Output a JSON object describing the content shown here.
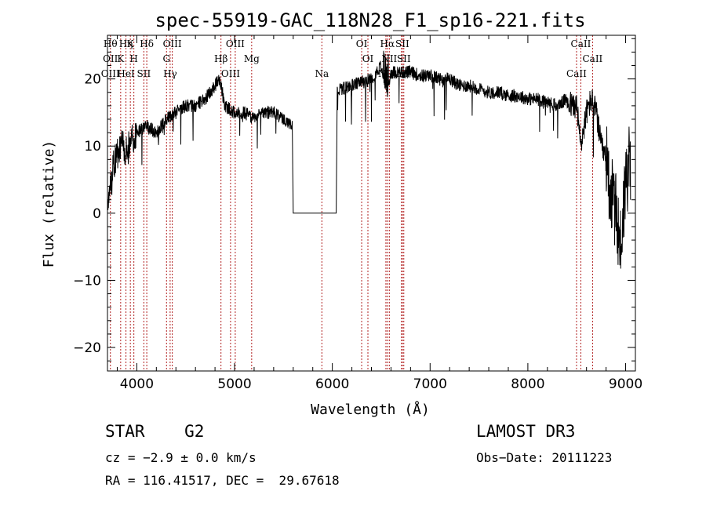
{
  "chart_data": {
    "type": "line",
    "title": "spec-55919-GAC_118N28_F1_sp16-221.fits",
    "xlabel": "Wavelength (Å)",
    "ylabel": "Flux (relative)",
    "xlim": [
      3700,
      9100
    ],
    "ylim": [
      -23.5,
      26.5
    ],
    "xticks": [
      4000,
      5000,
      6000,
      7000,
      8000,
      9000
    ],
    "xtick_labels": [
      "4000",
      "5000",
      "6000",
      "7000",
      "8000",
      "9000"
    ],
    "yticks": [
      -20,
      -10,
      0,
      10,
      20
    ],
    "ytick_labels": [
      "−20",
      "−10",
      "0",
      "10",
      "20"
    ],
    "grid": false,
    "legend": "none",
    "line_color": "#000000",
    "marker_color": "#b22222",
    "spectrum_anchors": {
      "x": [
        3700,
        3740,
        3760,
        3800,
        3850,
        3900,
        3950,
        4000,
        4100,
        4200,
        4300,
        4400,
        4500,
        4600,
        4700,
        4800,
        4850,
        4900,
        5000,
        5100,
        5200,
        5300,
        5400,
        5500,
        5560,
        5590,
        5600,
        6040,
        6050,
        6060,
        6100,
        6200,
        6300,
        6400,
        6450,
        6500,
        6560,
        6600,
        6700,
        6800,
        6900,
        7000,
        7100,
        7200,
        7300,
        7400,
        7500,
        7600,
        7700,
        7800,
        7900,
        8000,
        8100,
        8200,
        8300,
        8400,
        8450,
        8500,
        8540,
        8600,
        8650,
        8700,
        8750,
        8800,
        8850,
        8900,
        8950,
        9000,
        9050
      ],
      "y": [
        2,
        4,
        7,
        9,
        10,
        9,
        11,
        12,
        13,
        12,
        14,
        15,
        16,
        16,
        17,
        19,
        20,
        16,
        15,
        15,
        14,
        15,
        15,
        14,
        13.5,
        13,
        0,
        0,
        18,
        18.5,
        18.5,
        19,
        19.5,
        20,
        21,
        22,
        18,
        21,
        21,
        21,
        20.5,
        20.5,
        20,
        20,
        19,
        19,
        18.5,
        18,
        18,
        17.5,
        17.5,
        17,
        17,
        16.5,
        16,
        17,
        16,
        16,
        10,
        15,
        17,
        15,
        10,
        8,
        3,
        0,
        -5,
        5,
        8
      ]
    },
    "spectrum_noise_seed": 55919,
    "lines": [
      {
        "x": 3730,
        "labels": [
          "Hθ",
          "OII",
          "OIII"
        ]
      },
      {
        "x": 3835,
        "labels": [
          "K"
        ]
      },
      {
        "x": 3889,
        "labels": [
          "HeI",
          "Hη"
        ]
      },
      {
        "x": 3934,
        "labels": [
          "K"
        ]
      },
      {
        "x": 3970,
        "labels": [
          "H"
        ]
      },
      {
        "x": 4072,
        "labels": [
          "SII"
        ]
      },
      {
        "x": 4102,
        "labels": [
          "Hδ"
        ]
      },
      {
        "x": 4304,
        "labels": [
          "G"
        ]
      },
      {
        "x": 4341,
        "labels": [
          "Hγ"
        ]
      },
      {
        "x": 4363,
        "labels": [
          "OIII"
        ]
      },
      {
        "x": 4861,
        "labels": [
          "Hβ"
        ]
      },
      {
        "x": 4959,
        "labels": [
          "OIII"
        ]
      },
      {
        "x": 5007,
        "labels": [
          "OIII"
        ]
      },
      {
        "x": 5175,
        "labels": [
          "Mg"
        ]
      },
      {
        "x": 5893,
        "labels": [
          "Na"
        ]
      },
      {
        "x": 6300,
        "labels": [
          "OI"
        ]
      },
      {
        "x": 6364,
        "labels": [
          "OI"
        ]
      },
      {
        "x": 6548,
        "labels": [
          "NII"
        ]
      },
      {
        "x": 6563,
        "labels": [
          "Hα"
        ]
      },
      {
        "x": 6583,
        "labels": [
          "NII"
        ]
      },
      {
        "x": 6708,
        "labels": [
          "Li"
        ]
      },
      {
        "x": 6716,
        "labels": [
          "SII"
        ]
      },
      {
        "x": 6731,
        "labels": [
          "SII"
        ]
      },
      {
        "x": 8498,
        "labels": [
          "CaII"
        ]
      },
      {
        "x": 8542,
        "labels": [
          "CaII"
        ]
      },
      {
        "x": 8662,
        "labels": [
          "CaII"
        ]
      }
    ]
  },
  "info": {
    "class": "STAR    G2",
    "cz": "cz = −2.9 ± 0.0 km/s",
    "coords": "RA = 116.41517, DEC =  29.67618",
    "survey": "LAMOST DR3",
    "obs_date": "Obs−Date: 20111223"
  }
}
